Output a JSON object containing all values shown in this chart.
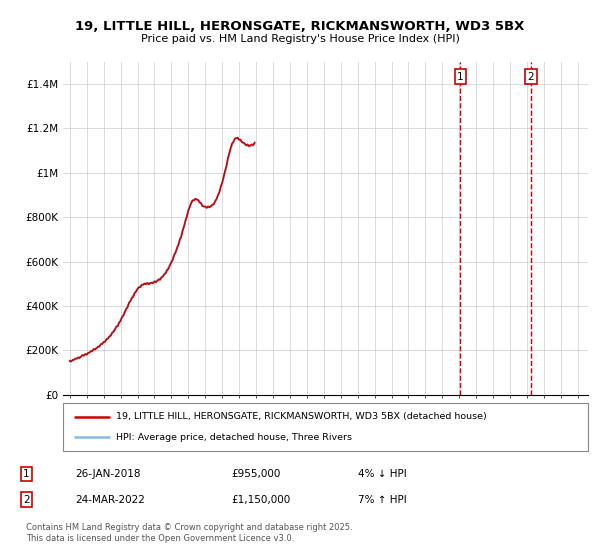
{
  "title_line1": "19, LITTLE HILL, HERONSGATE, RICKMANSWORTH, WD3 5BX",
  "title_line2": "Price paid vs. HM Land Registry's House Price Index (HPI)",
  "ylabel_ticks": [
    "£0",
    "£200K",
    "£400K",
    "£600K",
    "£800K",
    "£1M",
    "£1.2M",
    "£1.4M"
  ],
  "ylabel_values": [
    0,
    200000,
    400000,
    600000,
    800000,
    1000000,
    1200000,
    1400000
  ],
  "ylim": [
    0,
    1500000
  ],
  "x_start_year": 1995,
  "x_end_year": 2025,
  "line_prop_color": "#cc0000",
  "line_hpi_color": "#88bbdd",
  "line1_label": "19, LITTLE HILL, HERONSGATE, RICKMANSWORTH, WD3 5BX (detached house)",
  "line2_label": "HPI: Average price, detached house, Three Rivers",
  "marker1_year": 2018.07,
  "marker2_year": 2022.23,
  "footnote": "Contains HM Land Registry data © Crown copyright and database right 2025.\nThis data is licensed under the Open Government Licence v3.0.",
  "background_color": "#ffffff",
  "grid_color": "#cccccc",
  "hpi_base": [
    150000,
    152000,
    155000,
    158000,
    160000,
    163000,
    166000,
    169000,
    172000,
    175000,
    178000,
    181000,
    184000,
    187000,
    191000,
    195000,
    199000,
    203000,
    207000,
    211000,
    215000,
    220000,
    225000,
    230000,
    236000,
    242000,
    248000,
    255000,
    262000,
    270000,
    278000,
    287000,
    296000,
    306000,
    316000,
    327000,
    338000,
    350000,
    362000,
    374000,
    387000,
    400000,
    413000,
    426000,
    438000,
    450000,
    460000,
    470000,
    478000,
    485000,
    490000,
    495000,
    498000,
    500000,
    501000,
    502000,
    503000,
    504000,
    505000,
    507000,
    509000,
    512000,
    515000,
    519000,
    524000,
    530000,
    537000,
    545000,
    554000,
    564000,
    575000,
    587000,
    600000,
    614000,
    629000,
    645000,
    662000,
    680000,
    699000,
    719000,
    740000,
    762000,
    785000,
    808000,
    830000,
    850000,
    865000,
    875000,
    880000,
    882000,
    880000,
    875000,
    868000,
    860000,
    853000,
    848000,
    845000,
    843000,
    843000,
    845000,
    848000,
    853000,
    860000,
    870000,
    882000,
    896000,
    913000,
    933000,
    955000,
    978000,
    1003000,
    1030000,
    1058000,
    1085000,
    1108000,
    1126000,
    1140000,
    1150000,
    1155000,
    1152000,
    1148000,
    1143000,
    1138000,
    1132000,
    1127000,
    1123000,
    1120000,
    1118000,
    1118000,
    1120000,
    1124000,
    1130000
  ],
  "prop_offsets": [
    2000,
    -3000,
    1000,
    -2000,
    3000,
    -1000,
    2000,
    -3000,
    1000,
    4000,
    -2000,
    3000,
    -4000,
    2000,
    -1000,
    3000,
    -2000,
    4000,
    -3000,
    1000,
    2000,
    -3000,
    4000,
    -2000,
    1000,
    -4000,
    3000,
    -1000,
    2000,
    -3000,
    4000,
    -2000,
    1000,
    3000,
    -4000,
    2000,
    -1000,
    4000,
    -3000,
    1000,
    2000,
    -3000,
    4000,
    -1000,
    2000,
    -4000,
    3000,
    -2000,
    1000,
    3000,
    -4000,
    2000,
    -1000,
    3000,
    -2000,
    4000,
    -3000,
    1000,
    2000,
    -3000,
    4000,
    -2000,
    1000,
    3000,
    -4000,
    2000,
    -1000,
    3000,
    -2000,
    4000,
    -3000,
    1000,
    2000,
    -3000,
    4000,
    -2000,
    1000,
    -3000,
    2000,
    -4000,
    3000,
    -1000,
    2000,
    -3000,
    4000,
    -2000,
    1000,
    3000,
    -4000,
    2000,
    -1000,
    3000,
    -2000,
    4000,
    -3000,
    1000,
    2000,
    -3000,
    4000,
    -2000,
    1000,
    3000,
    -4000,
    2000,
    -1000,
    3000,
    -2000,
    4000,
    -3000,
    1000,
    2000,
    -3000,
    4000,
    -2000,
    1000,
    3000,
    -4000,
    2000,
    -1000,
    3000,
    -2000,
    4000,
    -3000,
    1000,
    2000,
    -3000,
    4000,
    -2000,
    1000,
    3000,
    -4000,
    2000
  ]
}
